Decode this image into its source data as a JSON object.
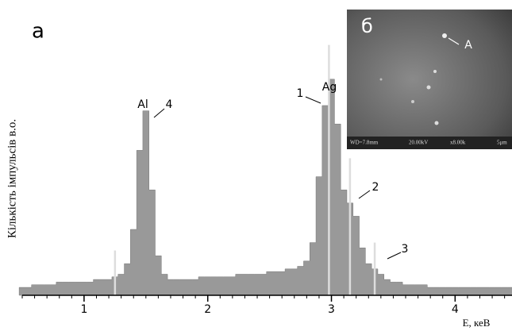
{
  "chart_data": {
    "type": "area",
    "panel_label": "а",
    "x_label": "E, кеВ",
    "y_label": "Кількість імпульсів в.о.",
    "x": [
      0.5,
      0.55,
      0.6,
      0.65,
      0.7,
      0.75,
      0.8,
      0.85,
      0.9,
      0.95,
      1.0,
      1.05,
      1.1,
      1.15,
      1.2,
      1.25,
      1.3,
      1.35,
      1.4,
      1.45,
      1.5,
      1.55,
      1.6,
      1.65,
      1.7,
      1.75,
      1.8,
      1.85,
      1.9,
      1.95,
      2.0,
      2.05,
      2.1,
      2.15,
      2.2,
      2.25,
      2.3,
      2.35,
      2.4,
      2.45,
      2.5,
      2.55,
      2.6,
      2.65,
      2.7,
      2.75,
      2.8,
      2.85,
      2.9,
      2.95,
      3.0,
      3.05,
      3.1,
      3.15,
      3.2,
      3.25,
      3.3,
      3.35,
      3.4,
      3.45,
      3.5,
      3.55,
      3.6,
      3.65,
      3.7,
      3.75,
      3.8,
      3.85,
      3.9,
      3.95,
      4.0,
      4.05,
      4.1,
      4.15,
      4.2,
      4.25,
      4.3,
      4.35,
      4.4,
      4.45
    ],
    "values": [
      3,
      3,
      4,
      4,
      4,
      4,
      5,
      5,
      5,
      5,
      5,
      5,
      6,
      6,
      6,
      7,
      8,
      12,
      25,
      55,
      70,
      40,
      15,
      8,
      6,
      6,
      6,
      6,
      6,
      7,
      7,
      7,
      7,
      7,
      7,
      8,
      8,
      8,
      8,
      8,
      9,
      9,
      9,
      10,
      10,
      11,
      13,
      20,
      45,
      72,
      82,
      65,
      40,
      35,
      30,
      18,
      12,
      10,
      8,
      6,
      5,
      5,
      4,
      4,
      4,
      4,
      3,
      3,
      3,
      3,
      3,
      3,
      3,
      3,
      3,
      3,
      3,
      3,
      3,
      3
    ],
    "color": "#999999",
    "marker_lines": {
      "x": [
        1.25,
        2.98,
        3.15,
        3.35
      ],
      "values": [
        17,
        95,
        52,
        20
      ],
      "color": "#dddddd"
    },
    "xlim": [
      0.5,
      4.46
    ],
    "ylim": [
      0,
      100
    ],
    "xticks": [
      1,
      2,
      3,
      4
    ],
    "annotations": [
      "Al",
      "4",
      "Ag",
      "1",
      "2",
      "3"
    ],
    "inset": {
      "label": "б",
      "point": "A",
      "info": [
        "WD=7.8mm",
        "20.00kV",
        "x8.00k",
        "5μm"
      ]
    }
  }
}
